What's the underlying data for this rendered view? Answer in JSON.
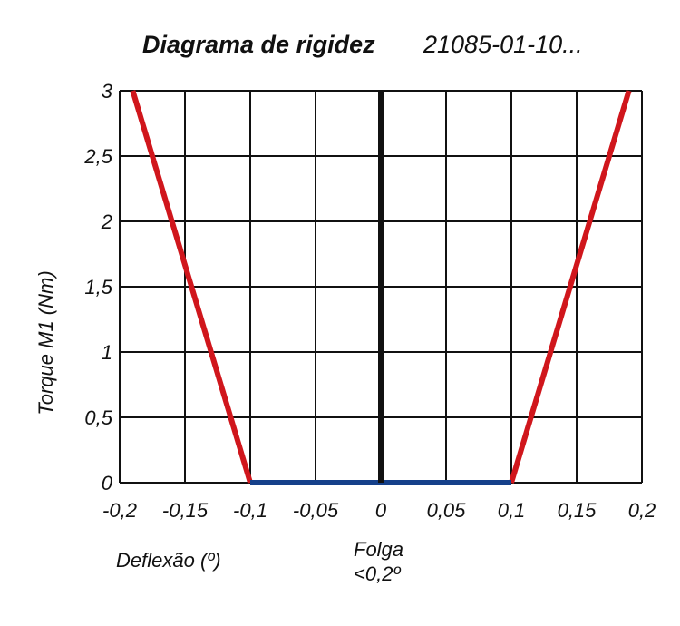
{
  "chart_data": {
    "type": "line",
    "title": "Diagrama de rigidez",
    "subtitle": "21085-01-10...",
    "xlabel": "Deflexão (º)",
    "ylabel": "Torque M1 (Nm)",
    "xlim": [
      -0.2,
      0.2
    ],
    "ylim": [
      0,
      3
    ],
    "x_ticks": [
      -0.2,
      -0.15,
      -0.1,
      -0.05,
      0,
      0.05,
      0.1,
      0.15,
      0.2
    ],
    "x_tick_labels": [
      "-0,2",
      "-0,15",
      "-0,1",
      "-0,05",
      "0",
      "0,05",
      "0,1",
      "0,15",
      "0,2"
    ],
    "y_ticks": [
      0,
      0.5,
      1,
      1.5,
      2,
      2.5,
      3
    ],
    "y_tick_labels": [
      "0",
      "0,5",
      "1",
      "1,5",
      "2",
      "2,5",
      "3"
    ],
    "grid": true,
    "series": [
      {
        "color": "#d0161c",
        "x": [
          -0.19,
          -0.1
        ],
        "y": [
          3,
          0
        ]
      },
      {
        "color": "#d0161c",
        "x": [
          0.1,
          0.19
        ],
        "y": [
          0,
          3
        ]
      },
      {
        "color": "#15408a",
        "x": [
          -0.1,
          0.1
        ],
        "y": [
          0,
          0
        ]
      },
      {
        "color": "#111111",
        "x": [
          0,
          0
        ],
        "y": [
          0,
          3
        ]
      }
    ],
    "annotations": [
      {
        "lines": [
          "Folga",
          "<0,2º"
        ]
      }
    ]
  }
}
